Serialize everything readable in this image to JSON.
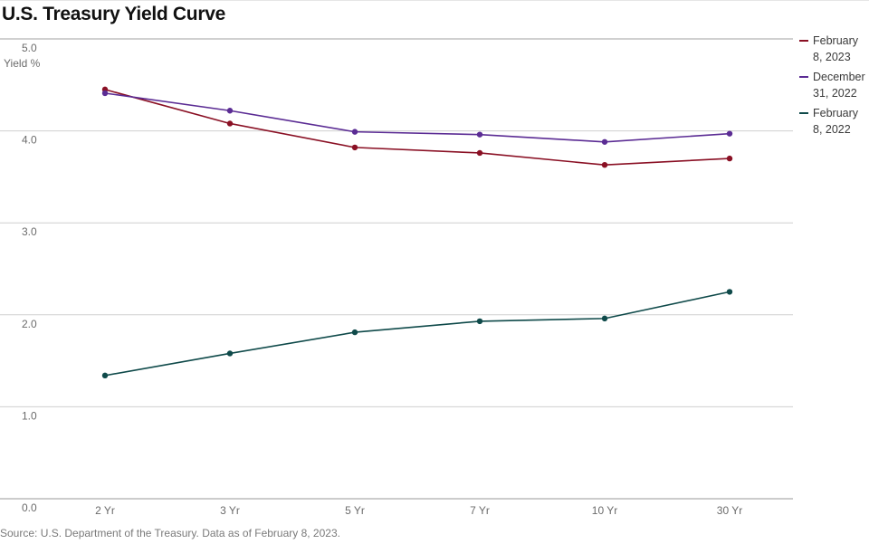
{
  "title": "U.S. Treasury Yield Curve",
  "source": "Source: U.S. Department of the Treasury. Data as of February 8, 2023.",
  "colors": {
    "series1": "#8a1024",
    "series2": "#5b2c94",
    "series3": "#0f4a4a",
    "grid": "#cfcfcf",
    "axis": "#9a9a9a"
  },
  "chart_data": {
    "type": "line",
    "title": "U.S. Treasury Yield Curve",
    "ylabel": "Yield %",
    "xlabel": "",
    "ylim": [
      0,
      5
    ],
    "yticks": [
      "0.0",
      "1.0",
      "2.0",
      "3.0",
      "4.0",
      "5.0"
    ],
    "categories": [
      "2 Yr",
      "3 Yr",
      "5 Yr",
      "7 Yr",
      "10 Yr",
      "30 Yr"
    ],
    "grid": true,
    "legend_position": "right",
    "series": [
      {
        "name": "February 8, 2023",
        "legend_lines": [
          "February",
          "8, 2023"
        ],
        "color": "#8a1024",
        "values": [
          4.45,
          4.08,
          3.82,
          3.76,
          3.63,
          3.7
        ]
      },
      {
        "name": "December 31, 2022",
        "legend_lines": [
          "December",
          "31, 2022"
        ],
        "color": "#5b2c94",
        "values": [
          4.41,
          4.22,
          3.99,
          3.96,
          3.88,
          3.97
        ]
      },
      {
        "name": "February 8, 2022",
        "legend_lines": [
          "February",
          "8, 2022"
        ],
        "color": "#0f4a4a",
        "values": [
          1.34,
          1.58,
          1.81,
          1.93,
          1.96,
          2.25
        ]
      }
    ]
  }
}
